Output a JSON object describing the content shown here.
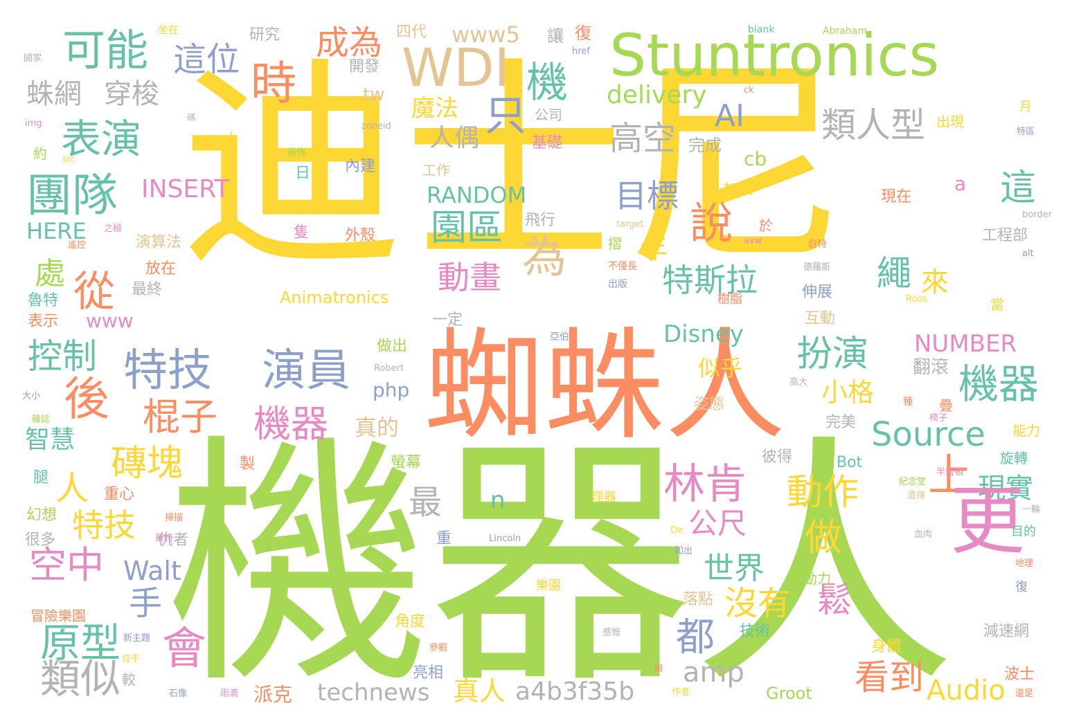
{
  "palette": {
    "yellow": "#FDD835",
    "green": "#A6D854",
    "orange": "#FC8D62",
    "blue": "#8DA0CB",
    "pink": "#E78AC3",
    "teal": "#66C2A5",
    "tan": "#E5C494",
    "gray": "#B3B3B3"
  },
  "words": [
    {
      "text": "迪士尼",
      "color": "yellow"
    },
    {
      "text": "機器人",
      "color": "green"
    },
    {
      "text": "蜘蛛人",
      "color": "orange"
    },
    {
      "text": "Stuntronics",
      "color": "green"
    },
    {
      "text": "WDI",
      "color": "tan"
    },
    {
      "text": "機",
      "color": "teal"
    },
    {
      "text": "可能",
      "color": "teal"
    },
    {
      "text": "這位",
      "color": "blue"
    },
    {
      "text": "時",
      "color": "orange"
    },
    {
      "text": "成為",
      "color": "orange"
    },
    {
      "text": "www5",
      "color": "tan"
    },
    {
      "text": "四代",
      "color": "tan"
    },
    {
      "text": "研究",
      "color": "gray"
    },
    {
      "text": "國家",
      "color": "gray"
    },
    {
      "text": "坐在",
      "color": "yellow"
    },
    {
      "text": "讓",
      "color": "gray"
    },
    {
      "text": "復",
      "color": "orange"
    },
    {
      "text": "blank",
      "color": "teal"
    },
    {
      "text": "Abraham",
      "color": "green"
    },
    {
      "text": "蛛網",
      "color": "gray"
    },
    {
      "text": "穿梭",
      "color": "gray"
    },
    {
      "text": "只",
      "color": "blue"
    },
    {
      "text": "AI",
      "color": "blue"
    },
    {
      "text": "delivery",
      "color": "green"
    },
    {
      "text": "類人型",
      "color": "gray"
    },
    {
      "text": "表演",
      "color": "teal"
    },
    {
      "text": "魔法",
      "color": "yellow"
    },
    {
      "text": "人偶",
      "color": "gray"
    },
    {
      "text": "高空",
      "color": "gray"
    },
    {
      "text": "完成",
      "color": "gray"
    },
    {
      "text": "團隊",
      "color": "teal"
    },
    {
      "text": "INSERT",
      "color": "pink"
    },
    {
      "text": "RANDOM",
      "color": "teal"
    },
    {
      "text": "目標",
      "color": "blue"
    },
    {
      "text": "說",
      "color": "orange"
    },
    {
      "text": "這",
      "color": "teal"
    },
    {
      "text": "a",
      "color": "pink"
    },
    {
      "text": "cb",
      "color": "green"
    },
    {
      "text": "HERE",
      "color": "teal"
    },
    {
      "text": "園區",
      "color": "teal"
    },
    {
      "text": "為",
      "color": "tan"
    },
    {
      "text": "年",
      "color": "yellow"
    },
    {
      "text": "處",
      "color": "green"
    },
    {
      "text": "從",
      "color": "orange"
    },
    {
      "text": "動畫",
      "color": "pink"
    },
    {
      "text": "特斯拉",
      "color": "teal"
    },
    {
      "text": "繩",
      "color": "teal"
    },
    {
      "text": "來",
      "color": "yellow"
    },
    {
      "text": "www",
      "color": "pink"
    },
    {
      "text": "Animatronics",
      "color": "yellow"
    },
    {
      "text": "控制",
      "color": "teal"
    },
    {
      "text": "特技",
      "color": "blue"
    },
    {
      "text": "演員",
      "color": "blue"
    },
    {
      "text": "扮演",
      "color": "teal"
    },
    {
      "text": "機器",
      "color": "teal"
    },
    {
      "text": "Disney",
      "color": "teal"
    },
    {
      "text": "NUMBER",
      "color": "pink"
    },
    {
      "text": "後",
      "color": "orange"
    },
    {
      "text": "棍子",
      "color": "orange"
    },
    {
      "text": "機器",
      "color": "pink"
    },
    {
      "text": "php",
      "color": "blue"
    },
    {
      "text": "小格",
      "color": "yellow"
    },
    {
      "text": "似乎",
      "color": "yellow"
    },
    {
      "text": "翻滾",
      "color": "gray"
    },
    {
      "text": "Source",
      "color": "teal"
    },
    {
      "text": "真的",
      "color": "tan"
    },
    {
      "text": "智慧",
      "color": "teal"
    },
    {
      "text": "磚塊",
      "color": "yellow"
    },
    {
      "text": "林肯",
      "color": "pink"
    },
    {
      "text": "動作",
      "color": "yellow"
    },
    {
      "text": "上",
      "color": "orange"
    },
    {
      "text": "現實",
      "color": "teal"
    },
    {
      "text": "更",
      "color": "pink"
    },
    {
      "text": "人",
      "color": "yellow"
    },
    {
      "text": "最",
      "color": "gray"
    },
    {
      "text": "n",
      "color": "teal"
    },
    {
      "text": "特技",
      "color": "yellow"
    },
    {
      "text": "公尺",
      "color": "pink"
    },
    {
      "text": "做",
      "color": "yellow"
    },
    {
      "text": "空中",
      "color": "pink"
    },
    {
      "text": "Walt",
      "color": "blue"
    },
    {
      "text": "世界",
      "color": "teal"
    },
    {
      "text": "手",
      "color": "blue"
    },
    {
      "text": "沒有",
      "color": "yellow"
    },
    {
      "text": "鬆",
      "color": "pink"
    },
    {
      "text": "原型",
      "color": "teal"
    },
    {
      "text": "會",
      "color": "pink"
    },
    {
      "text": "都",
      "color": "blue"
    },
    {
      "text": "amp",
      "color": "gray"
    },
    {
      "text": "看到",
      "color": "orange"
    },
    {
      "text": "類似",
      "color": "gray"
    },
    {
      "text": "technews",
      "color": "gray"
    },
    {
      "text": "真人",
      "color": "yellow"
    },
    {
      "text": "a4b3f35b",
      "color": "gray"
    },
    {
      "text": "Audio",
      "color": "yellow"
    },
    {
      "text": "Groot",
      "color": "green"
    },
    {
      "text": "派克",
      "color": "orange"
    },
    {
      "text": "tw",
      "color": "tan"
    },
    {
      "text": "開發",
      "color": "gray"
    },
    {
      "text": "公司",
      "color": "gray"
    },
    {
      "text": "基礎",
      "color": "pink"
    },
    {
      "text": "出現",
      "color": "yellow"
    },
    {
      "text": "特區",
      "color": "blue"
    },
    {
      "text": "月",
      "color": "yellow"
    },
    {
      "text": "工作",
      "color": "tan"
    },
    {
      "text": "加州",
      "color": "yellow"
    },
    {
      "text": "現在",
      "color": "orange"
    },
    {
      "text": "飛行",
      "color": "gray"
    },
    {
      "text": "工程部",
      "color": "gray"
    },
    {
      "text": "演算法",
      "color": "tan"
    },
    {
      "text": "放在",
      "color": "orange"
    },
    {
      "text": "最終",
      "color": "gray"
    },
    {
      "text": "魯特",
      "color": "teal"
    },
    {
      "text": "表示",
      "color": "orange"
    },
    {
      "text": "伸展",
      "color": "blue"
    },
    {
      "text": "互動",
      "color": "tan"
    },
    {
      "text": "一定",
      "color": "gray"
    },
    {
      "text": "做出",
      "color": "green"
    },
    {
      "text": "姿態",
      "color": "tan"
    },
    {
      "text": "完美",
      "color": "gray"
    },
    {
      "text": "能力",
      "color": "yellow"
    },
    {
      "text": "旋轉",
      "color": "teal"
    },
    {
      "text": "Bot",
      "color": "teal"
    },
    {
      "text": "彼得",
      "color": "gray"
    },
    {
      "text": "螢幕",
      "color": "green"
    },
    {
      "text": "製",
      "color": "orange"
    },
    {
      "text": "重心",
      "color": "orange"
    },
    {
      "text": "幻想",
      "color": "green"
    },
    {
      "text": "很多",
      "color": "gray"
    },
    {
      "text": "仇者",
      "color": "gray"
    },
    {
      "text": "重",
      "color": "blue"
    },
    {
      "text": "目的",
      "color": "teal"
    },
    {
      "text": "頓動力",
      "color": "green"
    },
    {
      "text": "落點",
      "color": "tan"
    },
    {
      "text": "技術",
      "color": "teal"
    },
    {
      "text": "角度",
      "color": "yellow"
    },
    {
      "text": "冒險樂園",
      "color": "orange"
    },
    {
      "text": "減速網",
      "color": "gray"
    },
    {
      "text": "身體",
      "color": "yellow"
    },
    {
      "text": "波士",
      "color": "orange"
    },
    {
      "text": "亮相",
      "color": "blue"
    },
    {
      "text": "較",
      "color": "gray"
    },
    {
      "text": "約",
      "color": "green"
    },
    {
      "text": "腿",
      "color": "teal"
    },
    {
      "text": "大",
      "color": "yellow"
    },
    {
      "text": "於",
      "color": "orange"
    },
    {
      "text": "樹脂",
      "color": "orange"
    },
    {
      "text": "當",
      "color": "yellow"
    },
    {
      "text": "疊",
      "color": "orange"
    },
    {
      "text": "摺",
      "color": "green"
    },
    {
      "text": "碼",
      "color": "gray"
    },
    {
      "text": "src",
      "color": "yellow"
    },
    {
      "text": "img",
      "color": "pink"
    },
    {
      "text": "href",
      "color": "blue"
    },
    {
      "text": "zoneid",
      "color": "gray"
    },
    {
      "text": "ck",
      "color": "orange"
    },
    {
      "text": "target",
      "color": "tan"
    },
    {
      "text": "border",
      "color": "gray"
    },
    {
      "text": "alt",
      "color": "blue"
    },
    {
      "text": "avw",
      "color": "pink"
    },
    {
      "text": "Roos",
      "color": "yellow"
    },
    {
      "text": "Robert",
      "color": "gray"
    },
    {
      "text": "Lincoln",
      "color": "blue"
    },
    {
      "text": "De",
      "color": "yellow"
    },
    {
      "text": "亞伯",
      "color": "blue"
    },
    {
      "text": "遙控",
      "color": "orange"
    },
    {
      "text": "之極",
      "color": "pink"
    },
    {
      "text": "不僅長",
      "color": "orange"
    },
    {
      "text": "出版",
      "color": "blue"
    },
    {
      "text": "伯特",
      "color": "orange"
    },
    {
      "text": "德羅斯",
      "color": "gray"
    },
    {
      "text": "雜誌",
      "color": "green"
    },
    {
      "text": "大小",
      "color": "blue"
    },
    {
      "text": "高大",
      "color": "gray"
    },
    {
      "text": "種",
      "color": "orange"
    },
    {
      "text": "椅子",
      "color": "pink"
    },
    {
      "text": "理器",
      "color": "yellow"
    },
    {
      "text": "紀念堂",
      "color": "green"
    },
    {
      "text": "遺傳",
      "color": "tan"
    },
    {
      "text": "一輪",
      "color": "gray"
    },
    {
      "text": "掃描",
      "color": "orange"
    },
    {
      "text": "華特",
      "color": "pink"
    },
    {
      "text": "血肉",
      "color": "gray"
    },
    {
      "text": "如出",
      "color": "blue"
    },
    {
      "text": "樂園",
      "color": "yellow"
    },
    {
      "text": "地理",
      "color": "orange"
    },
    {
      "text": "復",
      "color": "blue"
    },
    {
      "text": "新主題",
      "color": "blue"
    },
    {
      "text": "參觀",
      "color": "orange"
    },
    {
      "text": "感慨",
      "color": "gray"
    },
    {
      "text": "相",
      "color": "orange"
    },
    {
      "text": "拉平",
      "color": "yellow"
    },
    {
      "text": "石像",
      "color": "blue"
    },
    {
      "text": "雨滴",
      "color": "pink"
    },
    {
      "text": "作者",
      "color": "yellow"
    },
    {
      "text": "還是",
      "color": "orange"
    },
    {
      "text": "半盔頓",
      "color": "pink"
    },
    {
      "text": "遍佈",
      "color": "green"
    },
    {
      "text": "內建",
      "color": "blue"
    },
    {
      "text": "日",
      "color": "teal"
    },
    {
      "text": "隻",
      "color": "pink"
    },
    {
      "text": "外殼",
      "color": "orange"
    }
  ]
}
